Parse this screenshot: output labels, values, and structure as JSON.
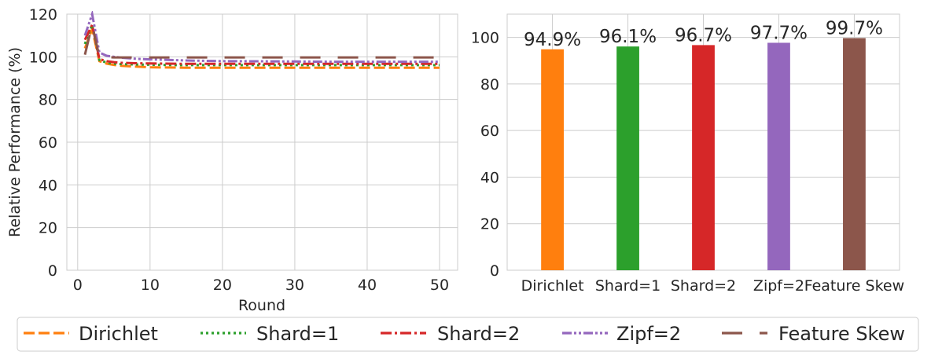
{
  "chart_data": [
    {
      "type": "line",
      "title": "",
      "xlabel": "Round",
      "ylabel": "Relative Performance (%)",
      "xlim": [
        -1.5,
        52.5
      ],
      "ylim": [
        0,
        120
      ],
      "xticks": [
        0,
        10,
        20,
        30,
        40,
        50
      ],
      "yticks": [
        0,
        20,
        40,
        60,
        80,
        100,
        120
      ],
      "grid": true,
      "series": [
        {
          "name": "Dirichlet",
          "color": "#ff7f0e",
          "dash": "dashed",
          "x": [
            1,
            2,
            3,
            4,
            5,
            6,
            8,
            10,
            12,
            15,
            20,
            25,
            30,
            35,
            40,
            45,
            50
          ],
          "y": [
            104,
            113,
            98,
            96.8,
            96.2,
            95.8,
            95.4,
            95.1,
            95,
            94.9,
            94.9,
            94.9,
            94.9,
            94.9,
            94.9,
            94.9,
            94.9
          ]
        },
        {
          "name": "Shard=1",
          "color": "#2ca02c",
          "dash": "dotted",
          "x": [
            1,
            2,
            3,
            4,
            5,
            6,
            8,
            10,
            12,
            15,
            20,
            25,
            30,
            35,
            40,
            45,
            50
          ],
          "y": [
            106,
            115,
            98.5,
            97.3,
            96.8,
            96.6,
            96.4,
            96.3,
            96.2,
            96.1,
            96.1,
            96.1,
            96.1,
            96.1,
            96.1,
            96.1,
            96.1
          ]
        },
        {
          "name": "Shard=2",
          "color": "#d62728",
          "dash": "dashdot",
          "x": [
            1,
            2,
            3,
            4,
            5,
            6,
            8,
            10,
            12,
            15,
            20,
            25,
            30,
            35,
            40,
            45,
            50
          ],
          "y": [
            108,
            115,
            99,
            98,
            97.5,
            97.2,
            97,
            96.9,
            96.8,
            96.7,
            96.7,
            96.7,
            96.7,
            96.7,
            96.7,
            96.7,
            96.7
          ]
        },
        {
          "name": "Zipf=2",
          "color": "#9467bd",
          "dash": "dashdotdot",
          "x": [
            1,
            2,
            3,
            4,
            5,
            6,
            8,
            10,
            12,
            15,
            20,
            25,
            30,
            35,
            40,
            45,
            50
          ],
          "y": [
            110,
            120,
            102,
            100.5,
            100,
            99.6,
            99.1,
            98.8,
            98.6,
            98.3,
            98,
            97.9,
            97.8,
            97.7,
            97.7,
            97.7,
            97.7
          ]
        },
        {
          "name": "Feature Skew",
          "color": "#8c564b",
          "dash": "longdash",
          "x": [
            1,
            2,
            3,
            4,
            5,
            6,
            8,
            10,
            12,
            15,
            20,
            25,
            30,
            35,
            40,
            45,
            50
          ],
          "y": [
            101,
            115,
            100,
            99.8,
            99.7,
            99.7,
            99.7,
            99.7,
            99.7,
            99.7,
            99.7,
            99.7,
            99.7,
            99.7,
            99.7,
            99.7,
            99.7
          ]
        }
      ]
    },
    {
      "type": "bar",
      "title": "",
      "xlabel": "",
      "ylabel": "",
      "ylim": [
        0,
        110
      ],
      "yticks": [
        0,
        20,
        40,
        60,
        80,
        100
      ],
      "grid": true,
      "categories": [
        "Dirichlet",
        "Shard=1",
        "Shard=2",
        "Zipf=2",
        "Feature Skew"
      ],
      "values": [
        94.9,
        96.1,
        96.7,
        97.7,
        99.7
      ],
      "value_labels": [
        "94.9%",
        "96.1%",
        "96.7%",
        "97.7%",
        "99.7%"
      ],
      "colors": [
        "#ff7f0e",
        "#2ca02c",
        "#d62728",
        "#9467bd",
        "#8c564b"
      ]
    }
  ],
  "legend": {
    "placement": "bottom",
    "entries": [
      "Dirichlet",
      "Shard=1",
      "Shard=2",
      "Zipf=2",
      "Feature Skew"
    ]
  }
}
